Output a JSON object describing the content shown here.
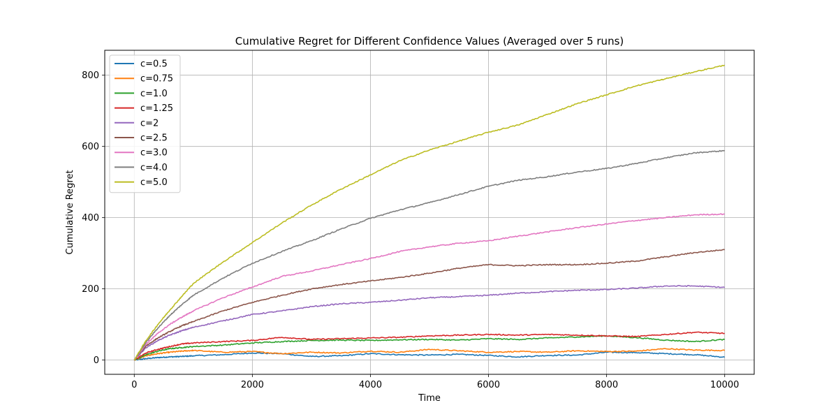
{
  "chart_data": {
    "type": "line",
    "title": "Cumulative Regret for Different Confidence Values (Averaged over 5 runs)",
    "xlabel": "Time",
    "ylabel": "Cumulative Regret",
    "xlim": [
      -500,
      10500
    ],
    "ylim": [
      -40,
      870
    ],
    "xticks": [
      0,
      2000,
      4000,
      6000,
      8000,
      10000
    ],
    "xtick_labels": [
      "0",
      "2000",
      "4000",
      "6000",
      "8000",
      "10000"
    ],
    "yticks": [
      0,
      200,
      400,
      600,
      800
    ],
    "ytick_labels": [
      "0",
      "200",
      "400",
      "600",
      "800"
    ],
    "grid": true,
    "legend_position": "top-left",
    "series": [
      {
        "name": "c=0.5",
        "color": "#1f77b4",
        "x": [
          0,
          200,
          400,
          600,
          800,
          1000,
          1500,
          2000,
          2500,
          3000,
          3500,
          4000,
          4500,
          5000,
          5500,
          6000,
          6500,
          7000,
          7500,
          8000,
          8500,
          9000,
          9500,
          10000
        ],
        "y": [
          0,
          4,
          7,
          9,
          10,
          12,
          15,
          20,
          18,
          10,
          12,
          18,
          15,
          14,
          16,
          13,
          9,
          13,
          14,
          22,
          21,
          18,
          15,
          8
        ]
      },
      {
        "name": "c=0.75",
        "color": "#ff7f0e",
        "x": [
          0,
          200,
          400,
          600,
          800,
          1000,
          1500,
          2000,
          2500,
          3000,
          3500,
          4000,
          4500,
          5000,
          5500,
          6000,
          6500,
          7000,
          7500,
          8000,
          8500,
          9000,
          9500,
          10000
        ],
        "y": [
          0,
          12,
          18,
          22,
          25,
          27,
          22,
          24,
          18,
          22,
          20,
          25,
          22,
          30,
          26,
          22,
          24,
          22,
          26,
          24,
          25,
          32,
          28,
          27
        ]
      },
      {
        "name": "c=1.0",
        "color": "#2ca02c",
        "x": [
          0,
          200,
          400,
          600,
          800,
          1000,
          1500,
          2000,
          2500,
          3000,
          3500,
          4000,
          4500,
          5000,
          5500,
          6000,
          6500,
          7000,
          7500,
          8000,
          8500,
          9000,
          9500,
          10000
        ],
        "y": [
          0,
          15,
          25,
          32,
          35,
          38,
          42,
          48,
          52,
          55,
          56,
          55,
          57,
          58,
          56,
          60,
          58,
          62,
          65,
          68,
          63,
          56,
          52,
          58
        ]
      },
      {
        "name": "c=1.25",
        "color": "#d62728",
        "x": [
          0,
          200,
          400,
          600,
          800,
          1000,
          1500,
          2000,
          2500,
          3000,
          3500,
          4000,
          4500,
          5000,
          5500,
          6000,
          6500,
          7000,
          7500,
          8000,
          8500,
          9000,
          9500,
          10000
        ],
        "y": [
          0,
          20,
          30,
          38,
          45,
          48,
          52,
          55,
          64,
          58,
          60,
          62,
          64,
          68,
          70,
          72,
          70,
          72,
          70,
          68,
          66,
          72,
          78,
          75
        ]
      },
      {
        "name": "c=2",
        "color": "#9467bd",
        "x": [
          0,
          200,
          400,
          600,
          800,
          1000,
          1500,
          2000,
          2500,
          3000,
          3500,
          4000,
          4500,
          5000,
          5500,
          6000,
          6500,
          7000,
          7500,
          8000,
          8500,
          9000,
          9500,
          10000
        ],
        "y": [
          0,
          35,
          55,
          70,
          82,
          92,
          110,
          128,
          138,
          150,
          158,
          162,
          168,
          175,
          178,
          182,
          188,
          192,
          196,
          198,
          202,
          208,
          208,
          204
        ]
      },
      {
        "name": "c=2.5",
        "color": "#8c564b",
        "x": [
          0,
          200,
          400,
          600,
          800,
          1000,
          1500,
          2000,
          2500,
          3000,
          3500,
          4000,
          4500,
          5000,
          5500,
          6000,
          6500,
          7000,
          7500,
          8000,
          8500,
          9000,
          9500,
          10000
        ],
        "y": [
          0,
          40,
          62,
          80,
          96,
          108,
          138,
          162,
          182,
          200,
          212,
          222,
          232,
          244,
          258,
          268,
          265,
          268,
          268,
          272,
          278,
          290,
          302,
          310
        ]
      },
      {
        "name": "c=3.0",
        "color": "#e377c2",
        "x": [
          0,
          200,
          400,
          600,
          800,
          1000,
          1500,
          2000,
          2500,
          3000,
          3500,
          4000,
          4500,
          5000,
          5500,
          6000,
          6500,
          7000,
          7500,
          8000,
          8500,
          9000,
          9500,
          10000
        ],
        "y": [
          0,
          45,
          75,
          100,
          120,
          138,
          175,
          205,
          235,
          250,
          268,
          285,
          305,
          318,
          328,
          335,
          348,
          360,
          372,
          382,
          392,
          400,
          408,
          410
        ]
      },
      {
        "name": "c=4.0",
        "color": "#7f7f7f",
        "x": [
          0,
          200,
          400,
          600,
          800,
          1000,
          1500,
          2000,
          2500,
          3000,
          3500,
          4000,
          4500,
          5000,
          5500,
          6000,
          6500,
          7000,
          7500,
          8000,
          8500,
          9000,
          9500,
          10000
        ],
        "y": [
          0,
          50,
          90,
          125,
          155,
          182,
          230,
          272,
          305,
          335,
          368,
          398,
          422,
          442,
          465,
          488,
          505,
          515,
          528,
          538,
          552,
          568,
          582,
          588
        ]
      },
      {
        "name": "c=5.0",
        "color": "#bcbd22",
        "x": [
          0,
          200,
          400,
          600,
          800,
          1000,
          1500,
          2000,
          2500,
          3000,
          3500,
          4000,
          4500,
          5000,
          5500,
          6000,
          6500,
          7000,
          7500,
          8000,
          8500,
          9000,
          9500,
          10000
        ],
        "y": [
          0,
          55,
          100,
          140,
          178,
          215,
          275,
          330,
          385,
          435,
          480,
          520,
          560,
          590,
          615,
          640,
          660,
          690,
          720,
          745,
          770,
          790,
          810,
          828
        ]
      }
    ]
  }
}
